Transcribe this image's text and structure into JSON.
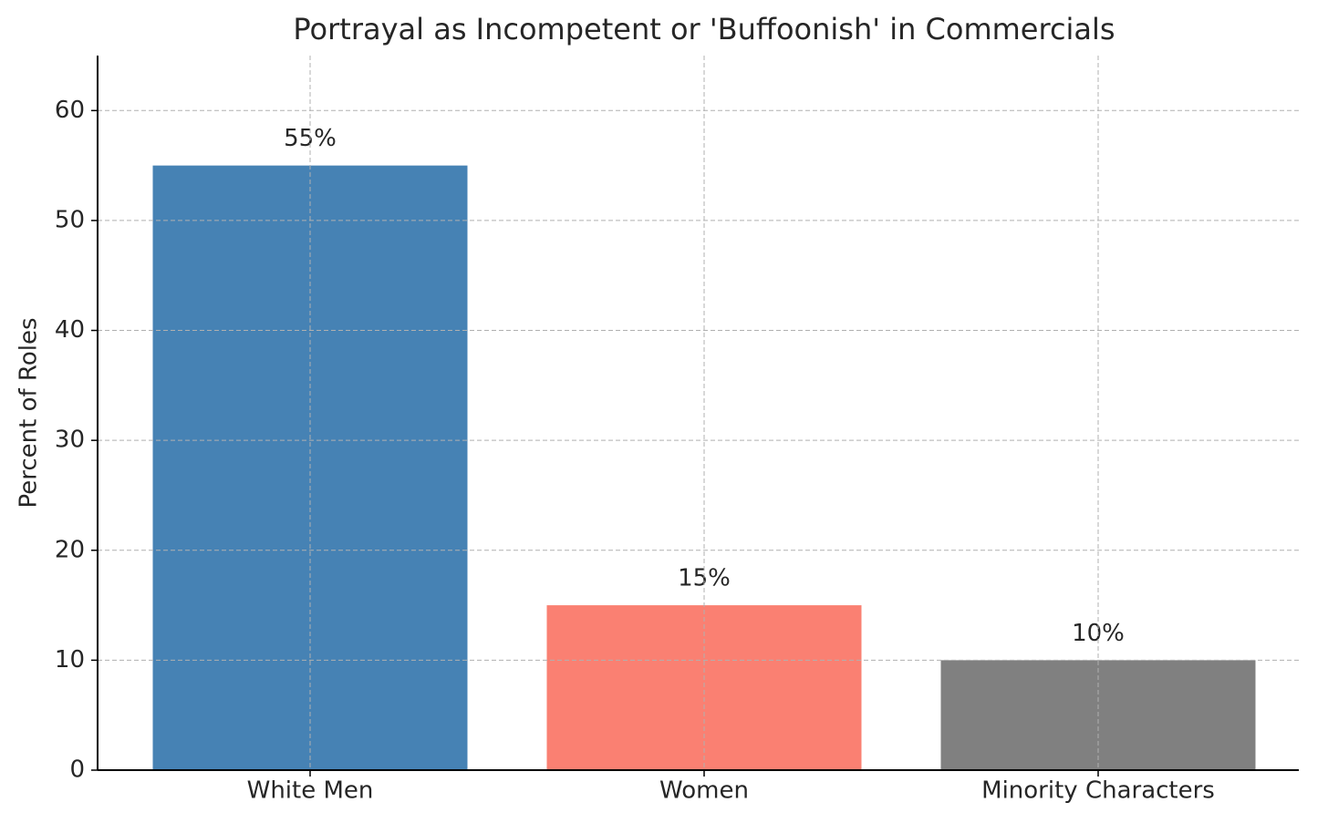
{
  "chart_data": {
    "type": "bar",
    "title": "Portrayal as Incompetent or 'Buffoonish' in Commercials",
    "y_label": "Percent of Roles",
    "categories": [
      "White Men",
      "Women",
      "Minority Characters"
    ],
    "values": [
      55,
      15,
      10
    ],
    "value_labels": [
      "55%",
      "15%",
      "10%"
    ],
    "colors": [
      "#4682b4",
      "#fa8072",
      "#808080"
    ],
    "ylim": [
      0,
      65
    ],
    "yticks": [
      0,
      10,
      20,
      30,
      40,
      50,
      60
    ],
    "grid": true
  }
}
